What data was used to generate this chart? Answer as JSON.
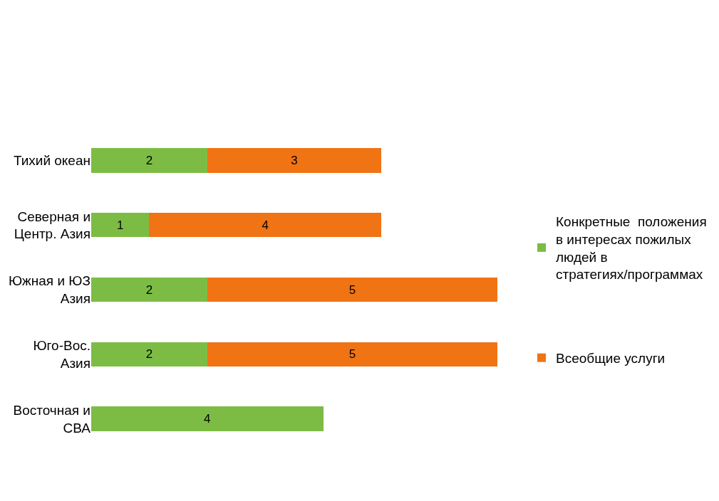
{
  "chart_data": {
    "type": "bar",
    "orientation": "horizontal",
    "stacked": true,
    "categories": [
      "Тихий океан",
      "Северная и Центр. Азия",
      "Южная и ЮЗ Азия",
      "Юго-Вос. Азия",
      "Восточная и СВА"
    ],
    "series": [
      {
        "name": "Конкретные  положения в интересах пожилых людей в стратегиях/программах",
        "color": "#7cbc44",
        "values": [
          2,
          1,
          2,
          2,
          4
        ]
      },
      {
        "name": "Всеобщие услуги",
        "color": "#f07314",
        "values": [
          3,
          4,
          5,
          5,
          null
        ]
      }
    ],
    "data_labels": true,
    "tick_labels": "y",
    "legend": "right"
  }
}
